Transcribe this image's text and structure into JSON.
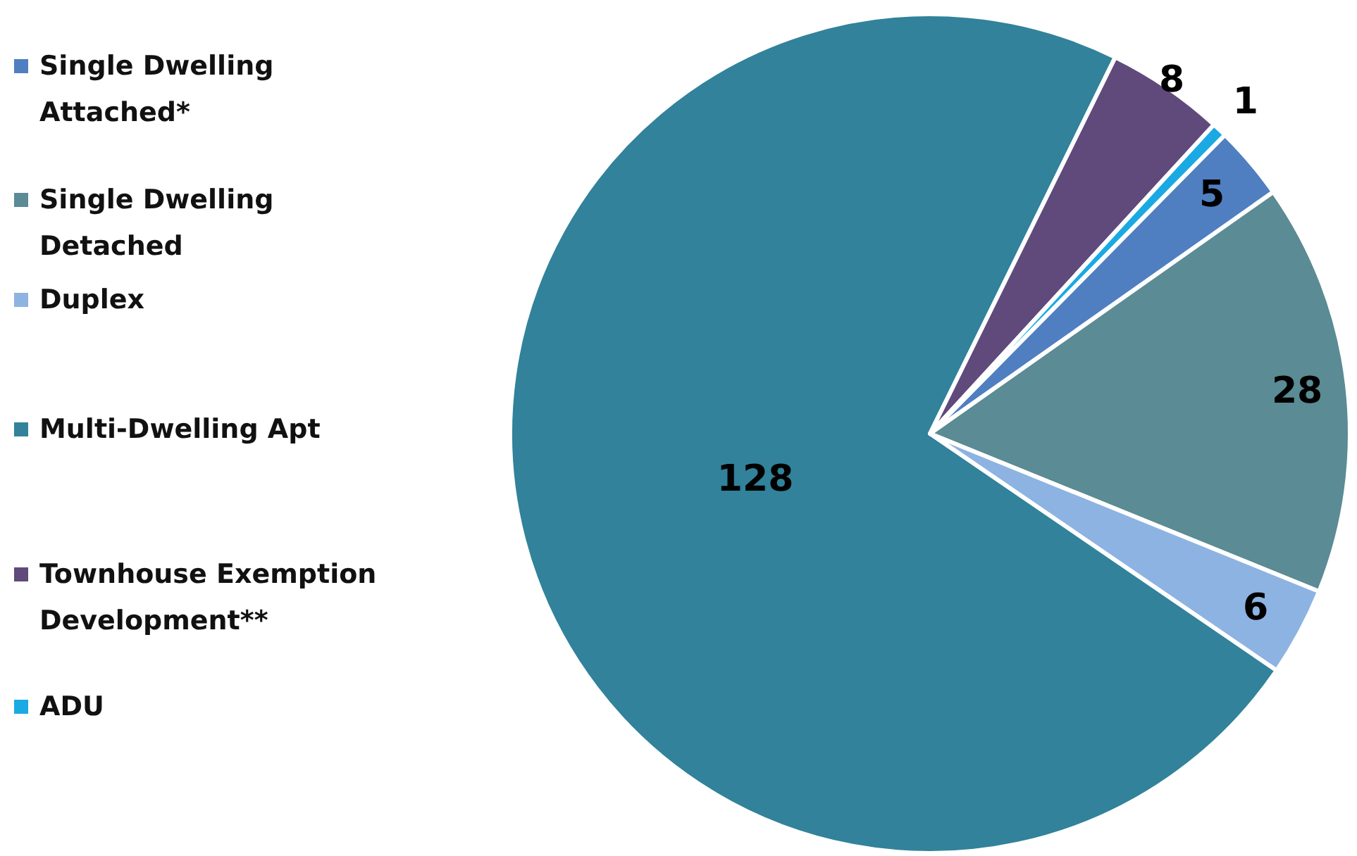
{
  "chart_data": {
    "type": "pie",
    "categories": [
      "Single Dwelling Attached*",
      "Single Dwelling Detached",
      "Duplex",
      "Multi-Dwelling Apt",
      "Townhouse Exemption Development**",
      "ADU"
    ],
    "values": [
      5,
      28,
      6,
      128,
      8,
      1
    ],
    "colors": [
      "#4f7fc0",
      "#5b8b94",
      "#8db3e2",
      "#31829a",
      "#5f4a7b",
      "#1aa9e2"
    ],
    "data_labels": true,
    "legend": "left"
  }
}
